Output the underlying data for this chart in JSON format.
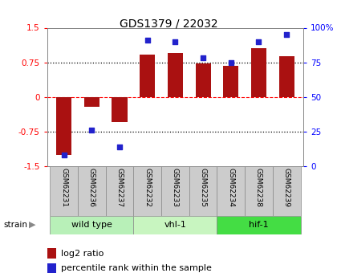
{
  "title": "GDS1379 / 22032",
  "samples": [
    "GSM62231",
    "GSM62236",
    "GSM62237",
    "GSM62232",
    "GSM62233",
    "GSM62235",
    "GSM62234",
    "GSM62238",
    "GSM62239"
  ],
  "log2_ratios": [
    -1.25,
    -0.22,
    -0.55,
    0.92,
    0.95,
    0.72,
    0.68,
    1.05,
    0.88
  ],
  "percentile_ranks": [
    8,
    26,
    14,
    91,
    90,
    78,
    75,
    90,
    95
  ],
  "groups": [
    {
      "label": "wild type",
      "start": 0,
      "end": 3,
      "color": "#b8f0b8"
    },
    {
      "label": "vhl-1",
      "start": 3,
      "end": 6,
      "color": "#c8f5c0"
    },
    {
      "label": "hif-1",
      "start": 6,
      "end": 9,
      "color": "#44dd44"
    }
  ],
  "bar_color": "#aa1111",
  "dot_color": "#2222cc",
  "sample_box_color": "#cccccc",
  "ylim_left": [
    -1.5,
    1.5
  ],
  "ylim_right": [
    0,
    100
  ],
  "yticks_left": [
    -1.5,
    -0.75,
    0,
    0.75,
    1.5
  ],
  "ytick_labels_left": [
    "-1.5",
    "-0.75",
    "0",
    "0.75",
    "1.5"
  ],
  "yticks_right": [
    0,
    25,
    50,
    75,
    100
  ],
  "ytick_labels_right": [
    "0",
    "25",
    "50",
    "75",
    "100%"
  ],
  "strain_label": "strain",
  "legend_log2": "log2 ratio",
  "legend_pct": "percentile rank within the sample",
  "fig_width": 4.2,
  "fig_height": 3.45,
  "fig_dpi": 100
}
